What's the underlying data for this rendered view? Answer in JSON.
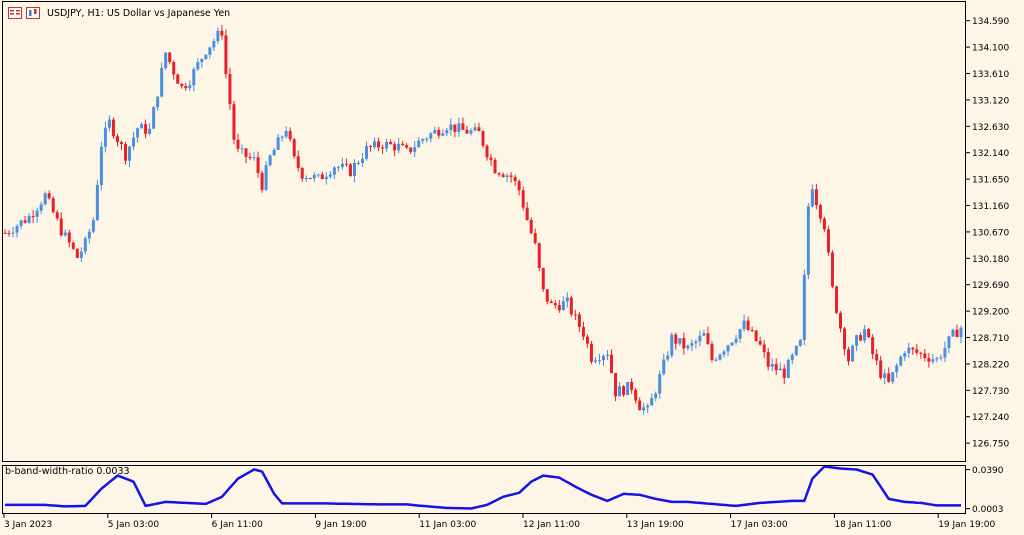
{
  "chart_data": [
    {
      "type": "candlestick",
      "title": "USDJPY, H1:  US Dollar vs Japanese Yen",
      "symbol": "USDJPY",
      "timeframe": "H1",
      "ylim": [
        126.4,
        134.9
      ],
      "y_ticks": [
        "134.590",
        "134.100",
        "133.610",
        "133.120",
        "132.630",
        "132.140",
        "131.650",
        "131.160",
        "130.670",
        "130.180",
        "129.690",
        "129.200",
        "128.710",
        "128.220",
        "127.730",
        "127.240",
        "126.750"
      ],
      "x_ticks": [
        "3 Jan 2023",
        "5 Jan 03:00",
        "6 Jan 11:00",
        "9 Jan 19:00",
        "11 Jan 03:00",
        "12 Jan 11:00",
        "13 Jan 19:00",
        "17 Jan 03:00",
        "18 Jan 11:00",
        "19 Jan 19:00"
      ],
      "up_color": "#4a8fe0",
      "down_color": "#e8202a",
      "close_path": [
        [
          0,
          130.65
        ],
        [
          6,
          130.95
        ],
        [
          10,
          131.35
        ],
        [
          14,
          130.7
        ],
        [
          18,
          130.2
        ],
        [
          20,
          130.45
        ],
        [
          22,
          130.9
        ],
        [
          24,
          132.3
        ],
        [
          26,
          132.7
        ],
        [
          28,
          132.4
        ],
        [
          30,
          132.1
        ],
        [
          33,
          132.6
        ],
        [
          36,
          132.55
        ],
        [
          40,
          134.0
        ],
        [
          42,
          133.65
        ],
        [
          44,
          133.35
        ],
        [
          46,
          133.5
        ],
        [
          50,
          134.05
        ],
        [
          54,
          134.4
        ],
        [
          55,
          133.6
        ],
        [
          56,
          133.05
        ],
        [
          57,
          132.4
        ],
        [
          58,
          132.15
        ],
        [
          62,
          132.0
        ],
        [
          64,
          131.55
        ],
        [
          66,
          132.05
        ],
        [
          70,
          132.6
        ],
        [
          72,
          132.0
        ],
        [
          74,
          131.75
        ],
        [
          78,
          131.65
        ],
        [
          82,
          131.9
        ],
        [
          86,
          131.8
        ],
        [
          90,
          132.2
        ],
        [
          94,
          132.3
        ],
        [
          98,
          132.25
        ],
        [
          100,
          132.15
        ],
        [
          104,
          132.4
        ],
        [
          110,
          132.65
        ],
        [
          114,
          132.55
        ],
        [
          118,
          132.5
        ],
        [
          120,
          132.15
        ],
        [
          122,
          131.85
        ],
        [
          126,
          131.7
        ],
        [
          128,
          131.45
        ],
        [
          130,
          130.9
        ],
        [
          132,
          130.4
        ],
        [
          133,
          129.95
        ],
        [
          134,
          129.55
        ],
        [
          136,
          129.3
        ],
        [
          140,
          129.35
        ],
        [
          142,
          129.05
        ],
        [
          144,
          128.8
        ],
        [
          146,
          128.35
        ],
        [
          150,
          128.45
        ],
        [
          152,
          127.7
        ],
        [
          156,
          127.8
        ],
        [
          158,
          127.45
        ],
        [
          160,
          127.35
        ],
        [
          162,
          127.75
        ],
        [
          164,
          128.2
        ],
        [
          166,
          128.7
        ],
        [
          170,
          128.5
        ],
        [
          174,
          128.75
        ],
        [
          176,
          128.3
        ],
        [
          180,
          128.6
        ],
        [
          184,
          128.95
        ],
        [
          188,
          128.55
        ],
        [
          190,
          128.2
        ],
        [
          194,
          128.05
        ],
        [
          198,
          128.6
        ],
        [
          199,
          129.8
        ],
        [
          200,
          131.15
        ],
        [
          201,
          131.55
        ],
        [
          202,
          131.25
        ],
        [
          204,
          130.8
        ],
        [
          206,
          129.6
        ],
        [
          208,
          128.9
        ],
        [
          210,
          128.3
        ],
        [
          212,
          128.65
        ],
        [
          214,
          128.85
        ],
        [
          216,
          128.4
        ],
        [
          218,
          128.05
        ],
        [
          220,
          127.85
        ],
        [
          224,
          128.5
        ],
        [
          228,
          128.4
        ],
        [
          232,
          128.3
        ],
        [
          236,
          128.75
        ],
        [
          238,
          128.9
        ]
      ],
      "num_bars": 239
    },
    {
      "type": "line",
      "label": "b-band-width-ratio 0.0033",
      "ylim": [
        -0.002,
        0.0415
      ],
      "y_ticks": [
        "0.0390",
        "0.0003"
      ],
      "color": "#1414e6",
      "series_path": [
        [
          0,
          0.004
        ],
        [
          10,
          0.004
        ],
        [
          15,
          0.0025
        ],
        [
          20,
          0.003
        ],
        [
          24,
          0.02
        ],
        [
          28,
          0.033
        ],
        [
          32,
          0.027
        ],
        [
          35,
          0.003
        ],
        [
          40,
          0.007
        ],
        [
          45,
          0.006
        ],
        [
          50,
          0.005
        ],
        [
          54,
          0.012
        ],
        [
          58,
          0.03
        ],
        [
          62,
          0.039
        ],
        [
          64,
          0.037
        ],
        [
          67,
          0.015
        ],
        [
          69,
          0.0055
        ],
        [
          75,
          0.0055
        ],
        [
          80,
          0.0055
        ],
        [
          86,
          0.005
        ],
        [
          94,
          0.0045
        ],
        [
          100,
          0.0045
        ],
        [
          104,
          0.003
        ],
        [
          110,
          0.001
        ],
        [
          116,
          0.0005
        ],
        [
          120,
          0.004
        ],
        [
          124,
          0.012
        ],
        [
          128,
          0.016
        ],
        [
          131,
          0.027
        ],
        [
          134,
          0.033
        ],
        [
          138,
          0.031
        ],
        [
          142,
          0.022
        ],
        [
          146,
          0.014
        ],
        [
          150,
          0.008
        ],
        [
          154,
          0.015
        ],
        [
          158,
          0.014
        ],
        [
          162,
          0.01
        ],
        [
          166,
          0.007
        ],
        [
          170,
          0.007
        ],
        [
          176,
          0.005
        ],
        [
          182,
          0.003
        ],
        [
          188,
          0.006
        ],
        [
          196,
          0.008
        ],
        [
          199,
          0.008
        ],
        [
          201,
          0.03
        ],
        [
          204,
          0.042
        ],
        [
          208,
          0.04
        ],
        [
          212,
          0.039
        ],
        [
          216,
          0.034
        ],
        [
          220,
          0.01
        ],
        [
          224,
          0.007
        ],
        [
          228,
          0.006
        ],
        [
          232,
          0.0035
        ],
        [
          238,
          0.0035
        ]
      ]
    }
  ]
}
